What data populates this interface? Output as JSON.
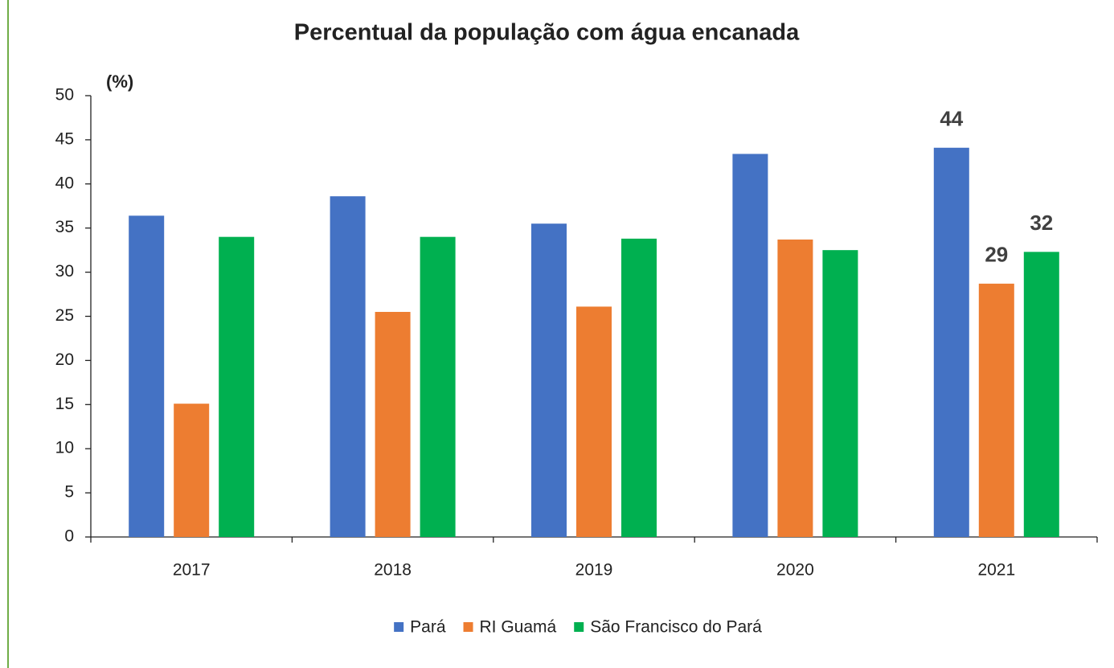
{
  "chart_data": {
    "type": "bar",
    "title": "Percentual da população com água encanada",
    "y_label": "(%)",
    "categories": [
      "2017",
      "2018",
      "2019",
      "2020",
      "2021"
    ],
    "series": [
      {
        "name": "Pará",
        "color": "#4472c4",
        "values": [
          36.4,
          38.6,
          35.5,
          43.4,
          44.1
        ],
        "value_labels": [
          null,
          null,
          null,
          null,
          "44"
        ]
      },
      {
        "name": "RI Guamá",
        "color": "#ed7d31",
        "values": [
          15.1,
          25.5,
          26.1,
          33.7,
          28.7
        ],
        "value_labels": [
          null,
          null,
          null,
          null,
          "29"
        ]
      },
      {
        "name": "São Francisco do Pará",
        "color": "#00b050",
        "values": [
          34.0,
          34.0,
          33.8,
          32.5,
          32.3
        ],
        "value_labels": [
          null,
          null,
          null,
          null,
          "32"
        ]
      }
    ],
    "ylim": [
      0,
      50
    ],
    "yticks": [
      0,
      5,
      10,
      15,
      20,
      25,
      30,
      35,
      40,
      45,
      50
    ],
    "grid": false,
    "legend": "bottom"
  }
}
